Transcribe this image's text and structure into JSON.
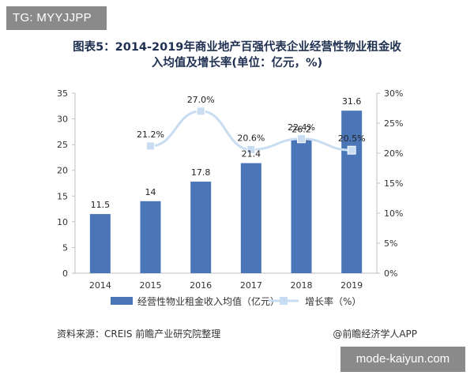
{
  "header": {
    "tag": "TG: MYYJJPP"
  },
  "footer": {
    "source": "资料来源：CREIS 前瞻产业研究院整理",
    "credit": "@前瞻经济学人APP",
    "site": "mode-kaiyun.com"
  },
  "chart_data": {
    "type": "bar",
    "title_line1": "图表5：2014-2019年商业地产百强代表企业经营性物业租金收",
    "title_line2": "入均值及增长率(单位：亿元，%)",
    "categories": [
      "2014",
      "2015",
      "2016",
      "2017",
      "2018",
      "2019"
    ],
    "y_left": {
      "ticks": [
        "0",
        "5",
        "10",
        "15",
        "20",
        "25",
        "30",
        "35"
      ],
      "range": [
        0,
        35
      ]
    },
    "y_right": {
      "ticks": [
        "0%",
        "5%",
        "10%",
        "15%",
        "20%",
        "25%",
        "30%"
      ],
      "range": [
        0,
        30
      ]
    },
    "series": [
      {
        "name": "经营性物业租金收入均值（亿元）",
        "type": "bar",
        "axis": "left",
        "color": "#4a76b8",
        "values": [
          11.5,
          14,
          17.8,
          21.4,
          26.2,
          31.6
        ],
        "labels": [
          "11.5",
          "14",
          "17.8",
          "21.4",
          "26.2",
          "31.6"
        ]
      },
      {
        "name": "增长率（%）",
        "type": "line",
        "axis": "right",
        "color": "#c8dcf2",
        "values": [
          null,
          21.2,
          27.0,
          20.6,
          22.4,
          20.5
        ],
        "labels": [
          "",
          "21.2%",
          "27.0%",
          "20.6%",
          "22.4%",
          "20.5%"
        ]
      }
    ],
    "grid": false,
    "legend_placement": "bottom"
  }
}
